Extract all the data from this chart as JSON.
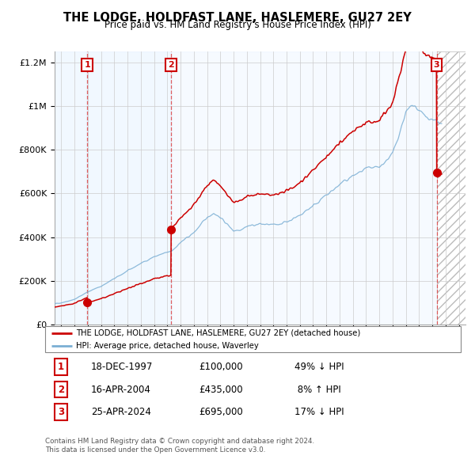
{
  "title": "THE LODGE, HOLDFAST LANE, HASLEMERE, GU27 2EY",
  "subtitle": "Price paid vs. HM Land Registry's House Price Index (HPI)",
  "legend_line1": "THE LODGE, HOLDFAST LANE, HASLEMERE, GU27 2EY (detached house)",
  "legend_line2": "HPI: Average price, detached house, Waverley",
  "transactions": [
    {
      "num": 1,
      "date": "18-DEC-1997",
      "price": 100000,
      "year": 1997.96,
      "pct": "49%",
      "dir": "↓"
    },
    {
      "num": 2,
      "date": "16-APR-2004",
      "price": 435000,
      "year": 2004.29,
      "pct": "8%",
      "dir": "↑"
    },
    {
      "num": 3,
      "date": "25-APR-2024",
      "price": 695000,
      "year": 2024.32,
      "pct": "17%",
      "dir": "↓"
    }
  ],
  "footnote1": "Contains HM Land Registry data © Crown copyright and database right 2024.",
  "footnote2": "This data is licensed under the Open Government Licence v3.0.",
  "xmin": 1995.5,
  "xmax": 2026.5,
  "ymin": 0,
  "ymax": 1250000,
  "ytick_max": 1200000,
  "red_color": "#cc0000",
  "blue_color": "#7bafd4",
  "bg_shade_color": "#ddeeff",
  "hatch_color": "#bbbbbb"
}
